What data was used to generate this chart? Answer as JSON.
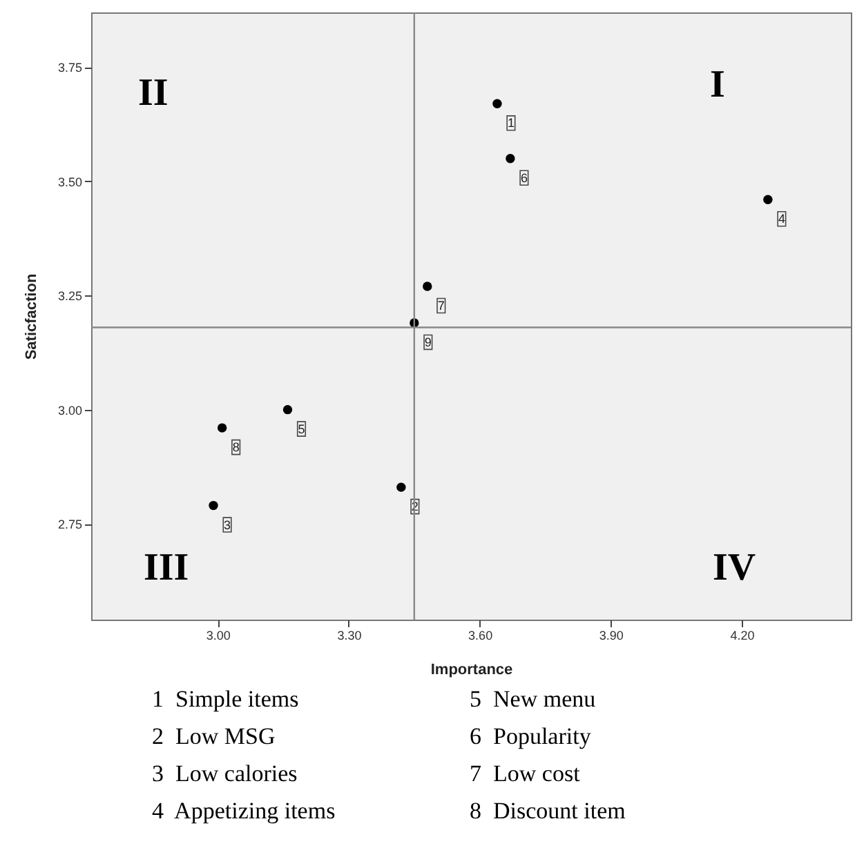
{
  "chart_data": {
    "type": "scatter",
    "xlabel": "Importance",
    "ylabel": "Saticfaction",
    "x": [
      3.64,
      3.42,
      2.99,
      4.26,
      3.16,
      3.67,
      3.48,
      3.01,
      3.45
    ],
    "series": [
      {
        "color": "#000000",
        "values": [
          3.67,
          2.83,
          2.79,
          3.46,
          3.0,
          3.55,
          3.27,
          2.96,
          3.19
        ]
      }
    ],
    "value_labels": [
      "1",
      "2",
      "3",
      "4",
      "5",
      "6",
      "7",
      "8",
      "9"
    ],
    "marker": "circle",
    "xlim": [
      2.71,
      4.45
    ],
    "ylim": [
      2.54,
      3.87
    ],
    "xticks": [
      {
        "value": 3,
        "label": "3.00"
      },
      {
        "value": 3.3,
        "label": "3.30"
      },
      {
        "value": 3.6,
        "label": "3.60"
      },
      {
        "value": 3.9,
        "label": "3.90"
      },
      {
        "value": 4.2,
        "label": "4.20"
      }
    ],
    "yticks": [
      {
        "value": 2.75,
        "label": "2.75"
      },
      {
        "value": 3,
        "label": "3.00"
      },
      {
        "value": 3.25,
        "label": "3.25"
      },
      {
        "value": 3.5,
        "label": "3.50"
      },
      {
        "value": 3.75,
        "label": "3.75"
      }
    ],
    "ref_lines": [
      {
        "axis": "x",
        "value": 3.45,
        "color": "#888888"
      },
      {
        "axis": "y",
        "value": 3.18,
        "color": "#888888"
      }
    ],
    "grid": false,
    "annotations": [
      "I",
      "II",
      "III",
      "IV",
      "1  Simple items",
      "2  Low MSG",
      "3  Low calories",
      "4  Appetizing items",
      "5  New menu",
      "6  Popularity",
      "7  Low cost",
      "8  Discount item"
    ]
  }
}
